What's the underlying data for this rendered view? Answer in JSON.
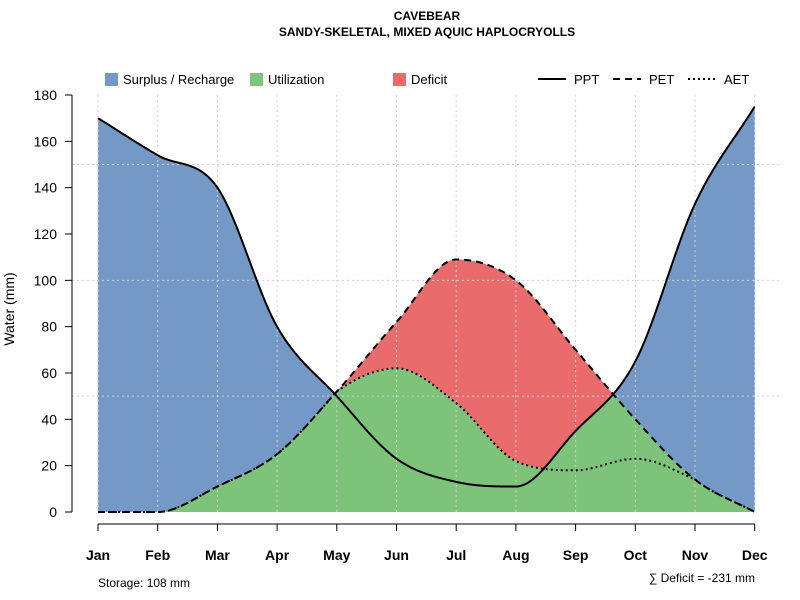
{
  "chart_data": {
    "type": "area",
    "title": "CAVEBEAR",
    "subtitle": "SANDY-SKELETAL, MIXED AQUIC HAPLOCRYOLLS",
    "xlabel": "",
    "ylabel": "Water (mm)",
    "ylim": [
      0,
      180
    ],
    "yticks": [
      0,
      20,
      40,
      60,
      80,
      100,
      120,
      140,
      160,
      180
    ],
    "grid": true,
    "legend_position": "top",
    "categories": [
      "Jan",
      "Feb",
      "Mar",
      "Apr",
      "May",
      "Jun",
      "Jul",
      "Aug",
      "Sep",
      "Oct",
      "Nov",
      "Dec"
    ],
    "series": [
      {
        "name": "PPT",
        "line_style": "solid",
        "values": [
          170,
          154,
          140,
          80,
          50,
          23,
          13,
          11,
          35,
          65,
          133,
          175
        ]
      },
      {
        "name": "PET",
        "line_style": "dashed",
        "values": [
          0,
          0,
          11,
          25,
          52,
          82,
          109,
          100,
          70,
          40,
          14,
          0
        ]
      },
      {
        "name": "AET",
        "line_style": "dotted",
        "values": [
          0,
          0,
          11,
          25,
          52,
          62,
          47,
          22,
          18,
          23,
          14,
          0
        ]
      }
    ],
    "legend": {
      "fills": [
        {
          "name": "Surplus / Recharge",
          "color": "#7599c6"
        },
        {
          "name": "Utilization",
          "color": "#7dc47a"
        },
        {
          "name": "Deficit",
          "color": "#ea6b6b"
        }
      ],
      "lines": [
        {
          "name": "PPT",
          "style": "solid"
        },
        {
          "name": "PET",
          "style": "dashed"
        },
        {
          "name": "AET",
          "style": "dotted"
        }
      ]
    },
    "storage_note": "Storage: 108 mm",
    "deficit_note": "∑ Deficit = -231 mm"
  }
}
